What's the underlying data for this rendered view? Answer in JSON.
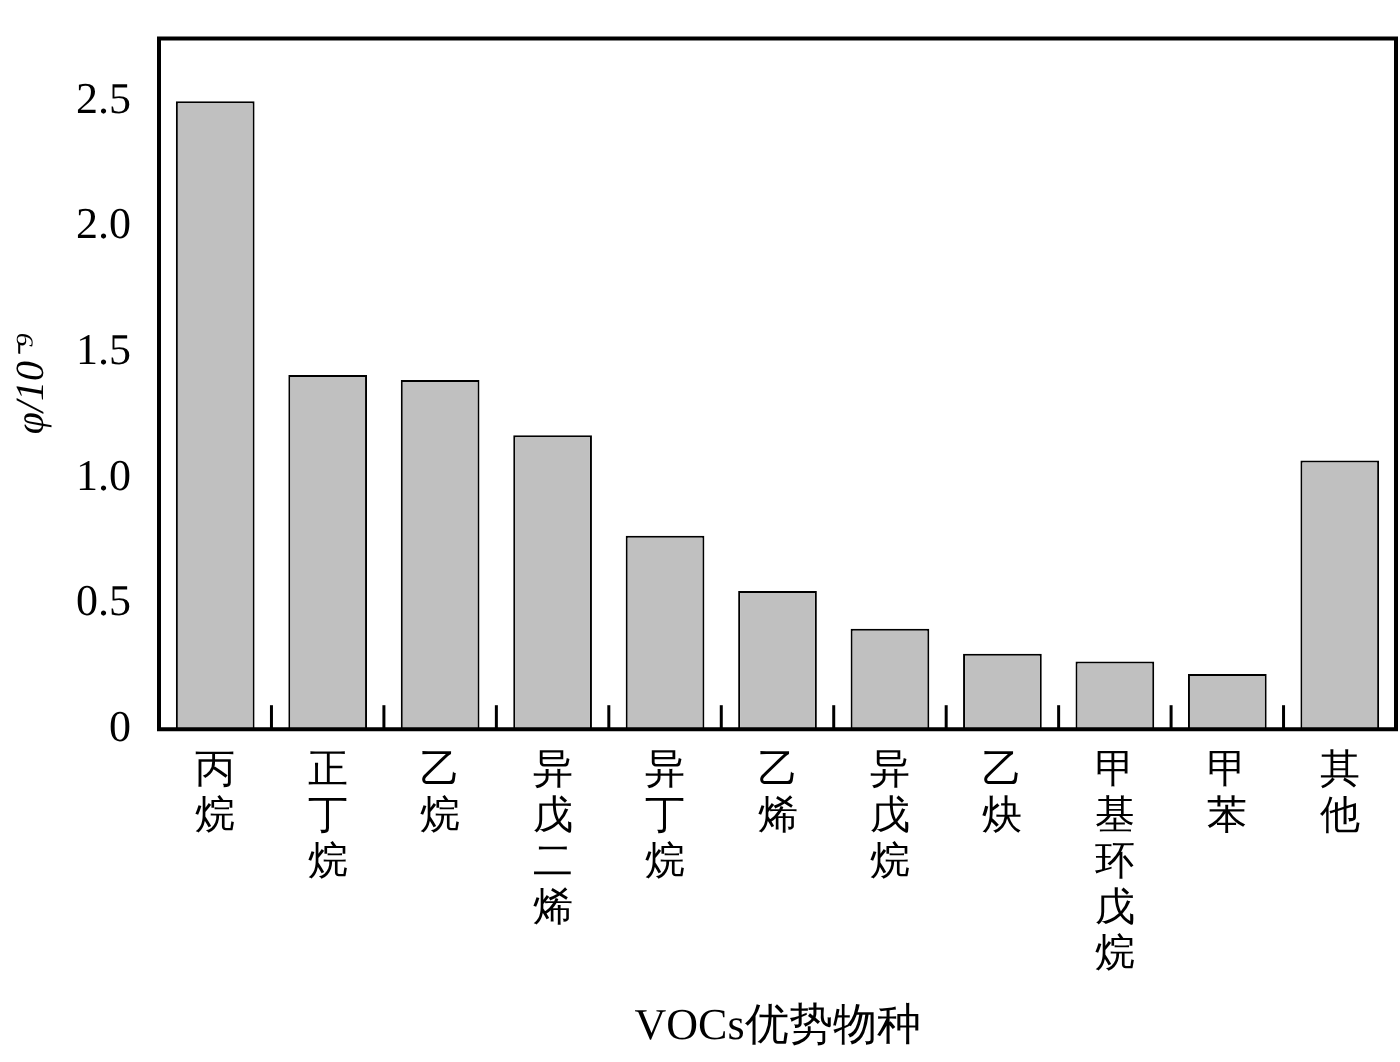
{
  "chart_data": {
    "type": "bar",
    "xlabel": "VOCs优势物种",
    "ylabel": "φ/10⁻⁹",
    "categories": [
      "丙烷",
      "正丁烷",
      "乙烷",
      "异戊二烯",
      "异丁烷",
      "乙烯",
      "异戊烷",
      "乙炔",
      "甲基环戊烷",
      "甲苯",
      "其他"
    ],
    "values": [
      2.5,
      1.41,
      1.39,
      1.17,
      0.77,
      0.55,
      0.4,
      0.3,
      0.27,
      0.22,
      1.07
    ],
    "color": "#c0c0c0",
    "ylim": [
      0,
      2.75
    ],
    "yticks": [
      0,
      {
        "value": 0.5,
        "label": "0.5"
      },
      {
        "value": 1,
        "label": "1.0"
      },
      {
        "value": 1.5,
        "label": "1.5"
      },
      {
        "value": 2,
        "label": "2.0"
      },
      {
        "value": 2.5,
        "label": "2.5"
      }
    ],
    "grid": false,
    "legend": false
  }
}
